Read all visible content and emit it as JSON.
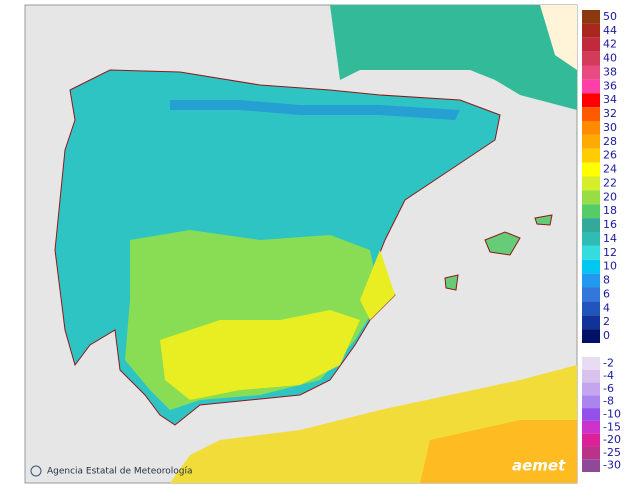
{
  "legend": {
    "items": [
      {
        "label": "50",
        "color": "#8b3a0f"
      },
      {
        "label": "44",
        "color": "#a8281e"
      },
      {
        "label": "42",
        "color": "#c02a3c"
      },
      {
        "label": "40",
        "color": "#d43a5a"
      },
      {
        "label": "38",
        "color": "#e84a82"
      },
      {
        "label": "36",
        "color": "#ff3fa8"
      },
      {
        "label": "34",
        "color": "#ff0000"
      },
      {
        "label": "32",
        "color": "#ff5a00"
      },
      {
        "label": "30",
        "color": "#ff8c00"
      },
      {
        "label": "28",
        "color": "#ffaa00"
      },
      {
        "label": "26",
        "color": "#ffcc00"
      },
      {
        "label": "24",
        "color": "#ffff00"
      },
      {
        "label": "22",
        "color": "#d4ee2a"
      },
      {
        "label": "20",
        "color": "#99dd44"
      },
      {
        "label": "18",
        "color": "#55cc66"
      },
      {
        "label": "16",
        "color": "#33aa99"
      },
      {
        "label": "14",
        "color": "#2ebcb4"
      },
      {
        "label": "12",
        "color": "#33dddd"
      },
      {
        "label": "10",
        "color": "#00c8f0"
      },
      {
        "label": "8",
        "color": "#2299ee"
      },
      {
        "label": "6",
        "color": "#3377dd"
      },
      {
        "label": "4",
        "color": "#2255bb"
      },
      {
        "label": "2",
        "color": "#113399"
      },
      {
        "label": "0",
        "color": "#001166"
      },
      {
        "label": "-2",
        "color": "#e8dcf2"
      },
      {
        "label": "-4",
        "color": "#d8c2ee"
      },
      {
        "label": "-6",
        "color": "#c4a6ee"
      },
      {
        "label": "-8",
        "color": "#ac84ee"
      },
      {
        "label": "-10",
        "color": "#9450ea"
      },
      {
        "label": "-15",
        "color": "#cc33cc"
      },
      {
        "label": "-20",
        "color": "#dd2299"
      },
      {
        "label": "-25",
        "color": "#bb3388"
      },
      {
        "label": "-30",
        "color": "#8e4a99"
      }
    ]
  },
  "credit": "Agencia Estatal de Meteorología",
  "logo": "aemet"
}
